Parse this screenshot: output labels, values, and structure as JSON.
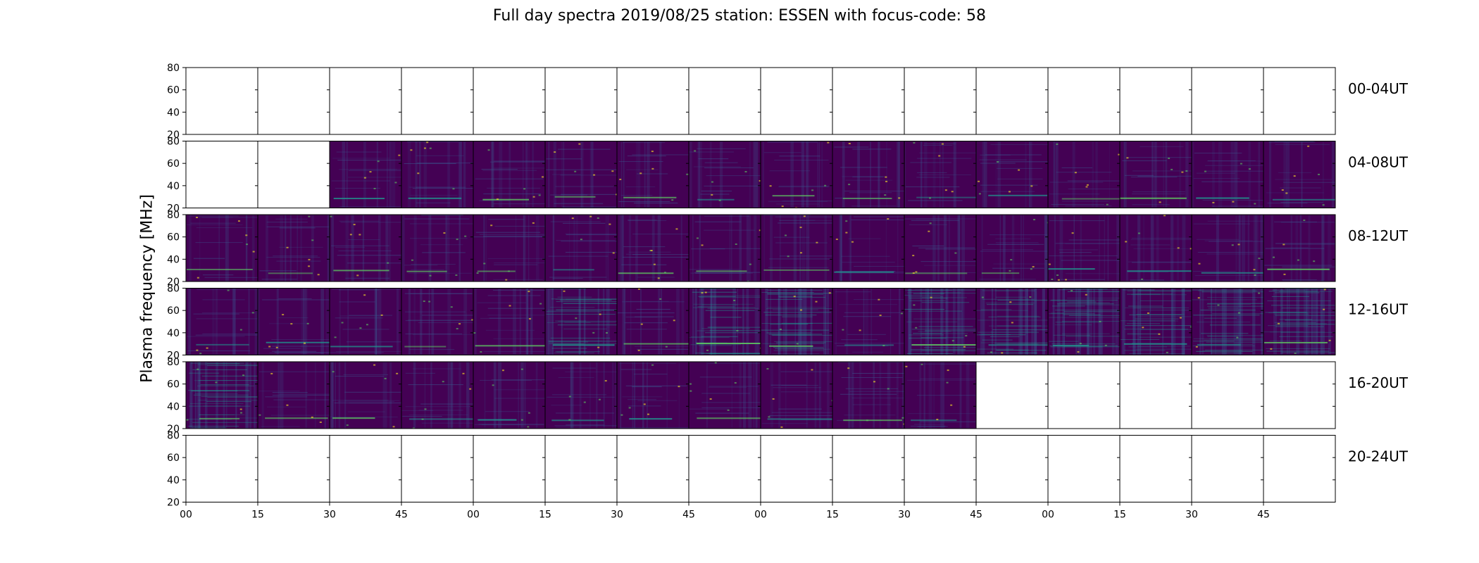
{
  "figure": {
    "title": "Full day spectra 2019/08/25 station: ESSEN with focus-code: 58",
    "ylabel": "Plasma frequency [MHz]",
    "colormap": [
      "#440154",
      "#3b528b",
      "#21918c",
      "#5ec962",
      "#fde725"
    ]
  },
  "chart_data": {
    "type": "heatmap",
    "title": "Full day spectra 2019/08/25 station: ESSEN with focus-code: 58",
    "ylabel": "Plasma frequency [MHz]",
    "xlabel": "",
    "ylim": [
      20,
      80
    ],
    "y_ticks": [
      "20",
      "40",
      "60",
      "80"
    ],
    "x_ticks": [
      "00",
      "15",
      "30",
      "45",
      "00",
      "15",
      "30",
      "45",
      "00",
      "15",
      "30",
      "45",
      "00",
      "15",
      "30",
      "45"
    ],
    "rows": [
      {
        "label": "00-04UT",
        "panels": [
          "empty",
          "empty",
          "empty",
          "empty",
          "empty",
          "empty",
          "empty",
          "empty",
          "empty",
          "empty",
          "empty",
          "empty",
          "empty",
          "empty",
          "empty",
          "empty"
        ]
      },
      {
        "label": "04-08UT",
        "panels": [
          "empty",
          "empty",
          "data",
          "data",
          "data",
          "data",
          "data",
          "data",
          "data",
          "data",
          "data",
          "data",
          "data",
          "data",
          "data",
          "data"
        ]
      },
      {
        "label": "08-12UT",
        "panels": [
          "data",
          "data",
          "data",
          "data",
          "data",
          "data",
          "data",
          "data",
          "data",
          "data",
          "data",
          "data",
          "data",
          "data",
          "data",
          "data"
        ]
      },
      {
        "label": "12-16UT",
        "panels": [
          "data",
          "data",
          "data",
          "data",
          "data",
          "data",
          "data",
          "data",
          "data",
          "data",
          "data",
          "data",
          "data",
          "data",
          "data",
          "data"
        ]
      },
      {
        "label": "16-20UT",
        "panels": [
          "data",
          "data",
          "data",
          "data",
          "data",
          "data",
          "data",
          "data",
          "data",
          "data",
          "data",
          "empty",
          "empty",
          "empty",
          "empty",
          "empty"
        ]
      },
      {
        "label": "20-24UT",
        "panels": [
          "empty",
          "empty",
          "empty",
          "empty",
          "empty",
          "empty",
          "empty",
          "empty",
          "empty",
          "empty",
          "empty",
          "empty",
          "empty",
          "empty",
          "empty",
          "empty"
        ]
      }
    ],
    "noisy_panels": [
      [
        3,
        5
      ],
      [
        3,
        7
      ],
      [
        3,
        8
      ],
      [
        3,
        10
      ],
      [
        3,
        11
      ],
      [
        3,
        12
      ],
      [
        3,
        13
      ],
      [
        3,
        14
      ],
      [
        3,
        15
      ],
      [
        4,
        0
      ]
    ]
  }
}
